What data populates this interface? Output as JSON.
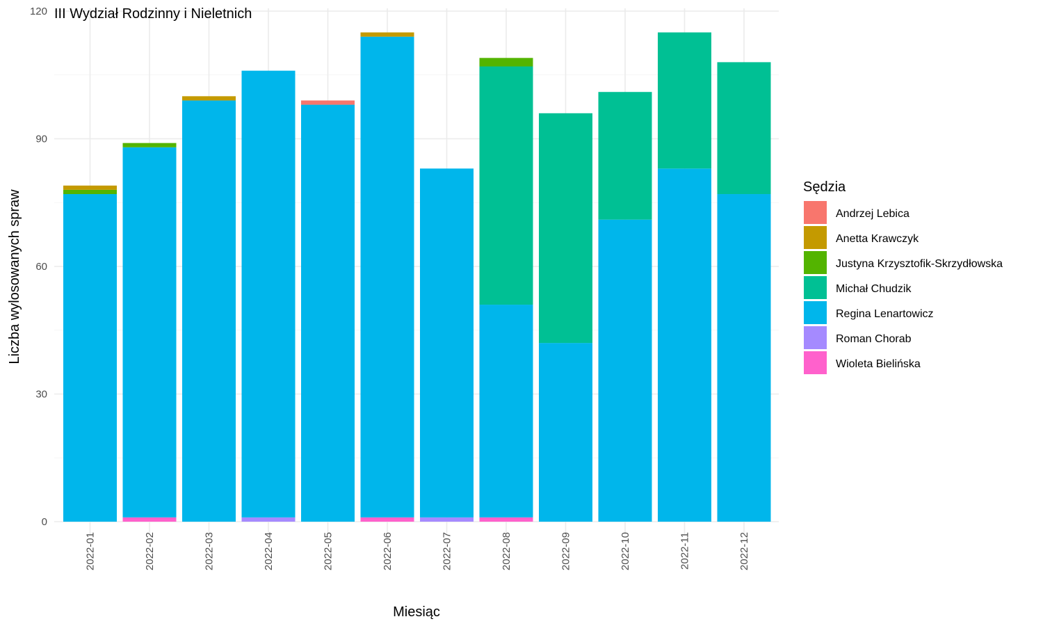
{
  "chart_data": {
    "type": "bar",
    "stacked": true,
    "title": "III Wydział Rodzinny i Nieletnich",
    "xlabel": "Miesiąc",
    "ylabel": "Liczba wylosowanych spraw",
    "ylim": [
      0,
      120
    ],
    "yticks": [
      0,
      30,
      60,
      90,
      120
    ],
    "grid": true,
    "legend_title": "Sędzia",
    "legend_position": "right",
    "categories": [
      "2022-01",
      "2022-02",
      "2022-03",
      "2022-04",
      "2022-05",
      "2022-06",
      "2022-07",
      "2022-08",
      "2022-09",
      "2022-10",
      "2022-11",
      "2022-12"
    ],
    "series": [
      {
        "name": "Wioleta Bielińska",
        "color": "#FF61CC",
        "values": [
          0,
          1,
          0,
          0,
          0,
          1,
          0,
          1,
          0,
          0,
          0,
          0
        ]
      },
      {
        "name": "Roman Chorab",
        "color": "#A58AFF",
        "values": [
          0,
          0,
          0,
          1,
          0,
          0,
          1,
          0,
          0,
          0,
          0,
          0
        ]
      },
      {
        "name": "Regina Lenartowicz",
        "color": "#00B6EB",
        "values": [
          77,
          87,
          99,
          105,
          98,
          113,
          82,
          50,
          42,
          71,
          83,
          77
        ]
      },
      {
        "name": "Michał Chudzik",
        "color": "#00C094",
        "values": [
          0,
          0,
          0,
          0,
          0,
          0,
          0,
          56,
          54,
          30,
          32,
          31
        ]
      },
      {
        "name": "Justyna Krzysztofik-Skrzydłowska",
        "color": "#53B400",
        "values": [
          1,
          1,
          0,
          0,
          0,
          0,
          0,
          2,
          0,
          0,
          0,
          0
        ]
      },
      {
        "name": "Anetta Krawczyk",
        "color": "#C49A00",
        "values": [
          1,
          0,
          1,
          0,
          0,
          1,
          0,
          0,
          0,
          0,
          0,
          0
        ]
      },
      {
        "name": "Andrzej Lebica",
        "color": "#F8766D",
        "values": [
          0,
          0,
          0,
          0,
          1,
          0,
          0,
          0,
          0,
          0,
          0,
          0
        ]
      }
    ],
    "legend_order": [
      "Andrzej Lebica",
      "Anetta Krawczyk",
      "Justyna Krzysztofik-Skrzydłowska",
      "Michał Chudzik",
      "Regina Lenartowicz",
      "Roman Chorab",
      "Wioleta Bielińska"
    ]
  }
}
